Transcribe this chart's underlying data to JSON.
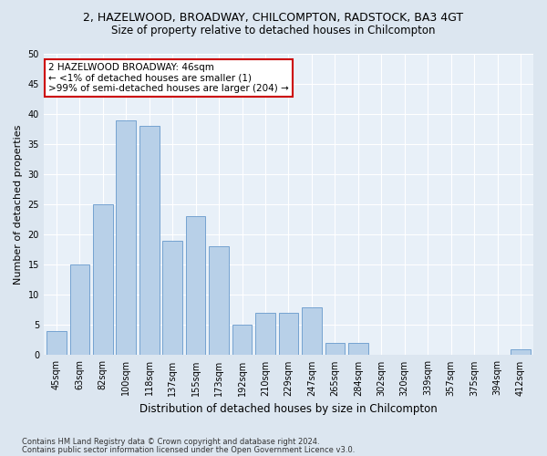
{
  "title1": "2, HAZELWOOD, BROADWAY, CHILCOMPTON, RADSTOCK, BA3 4GT",
  "title2": "Size of property relative to detached houses in Chilcompton",
  "xlabel": "Distribution of detached houses by size in Chilcompton",
  "ylabel": "Number of detached properties",
  "categories": [
    "45sqm",
    "63sqm",
    "82sqm",
    "100sqm",
    "118sqm",
    "137sqm",
    "155sqm",
    "173sqm",
    "192sqm",
    "210sqm",
    "229sqm",
    "247sqm",
    "265sqm",
    "284sqm",
    "302sqm",
    "320sqm",
    "339sqm",
    "357sqm",
    "375sqm",
    "394sqm",
    "412sqm"
  ],
  "values": [
    4,
    15,
    25,
    39,
    38,
    19,
    23,
    18,
    5,
    7,
    7,
    8,
    2,
    2,
    0,
    0,
    0,
    0,
    0,
    0,
    1
  ],
  "bar_color": "#b8d0e8",
  "bar_edge_color": "#6699cc",
  "annotation_title": "2 HAZELWOOD BROADWAY: 46sqm",
  "annotation_line1": "← <1% of detached houses are smaller (1)",
  "annotation_line2": ">99% of semi-detached houses are larger (204) →",
  "annotation_box_color": "#ffffff",
  "annotation_box_edge": "#cc0000",
  "ylim": [
    0,
    50
  ],
  "yticks": [
    0,
    5,
    10,
    15,
    20,
    25,
    30,
    35,
    40,
    45,
    50
  ],
  "footer1": "Contains HM Land Registry data © Crown copyright and database right 2024.",
  "footer2": "Contains public sector information licensed under the Open Government Licence v3.0.",
  "bg_color": "#dce6f0",
  "plot_bg_color": "#e8f0f8",
  "grid_color": "#ffffff",
  "title1_fontsize": 9,
  "title2_fontsize": 8.5,
  "xlabel_fontsize": 8.5,
  "ylabel_fontsize": 8,
  "tick_fontsize": 7,
  "footer_fontsize": 6,
  "ann_fontsize": 7.5
}
